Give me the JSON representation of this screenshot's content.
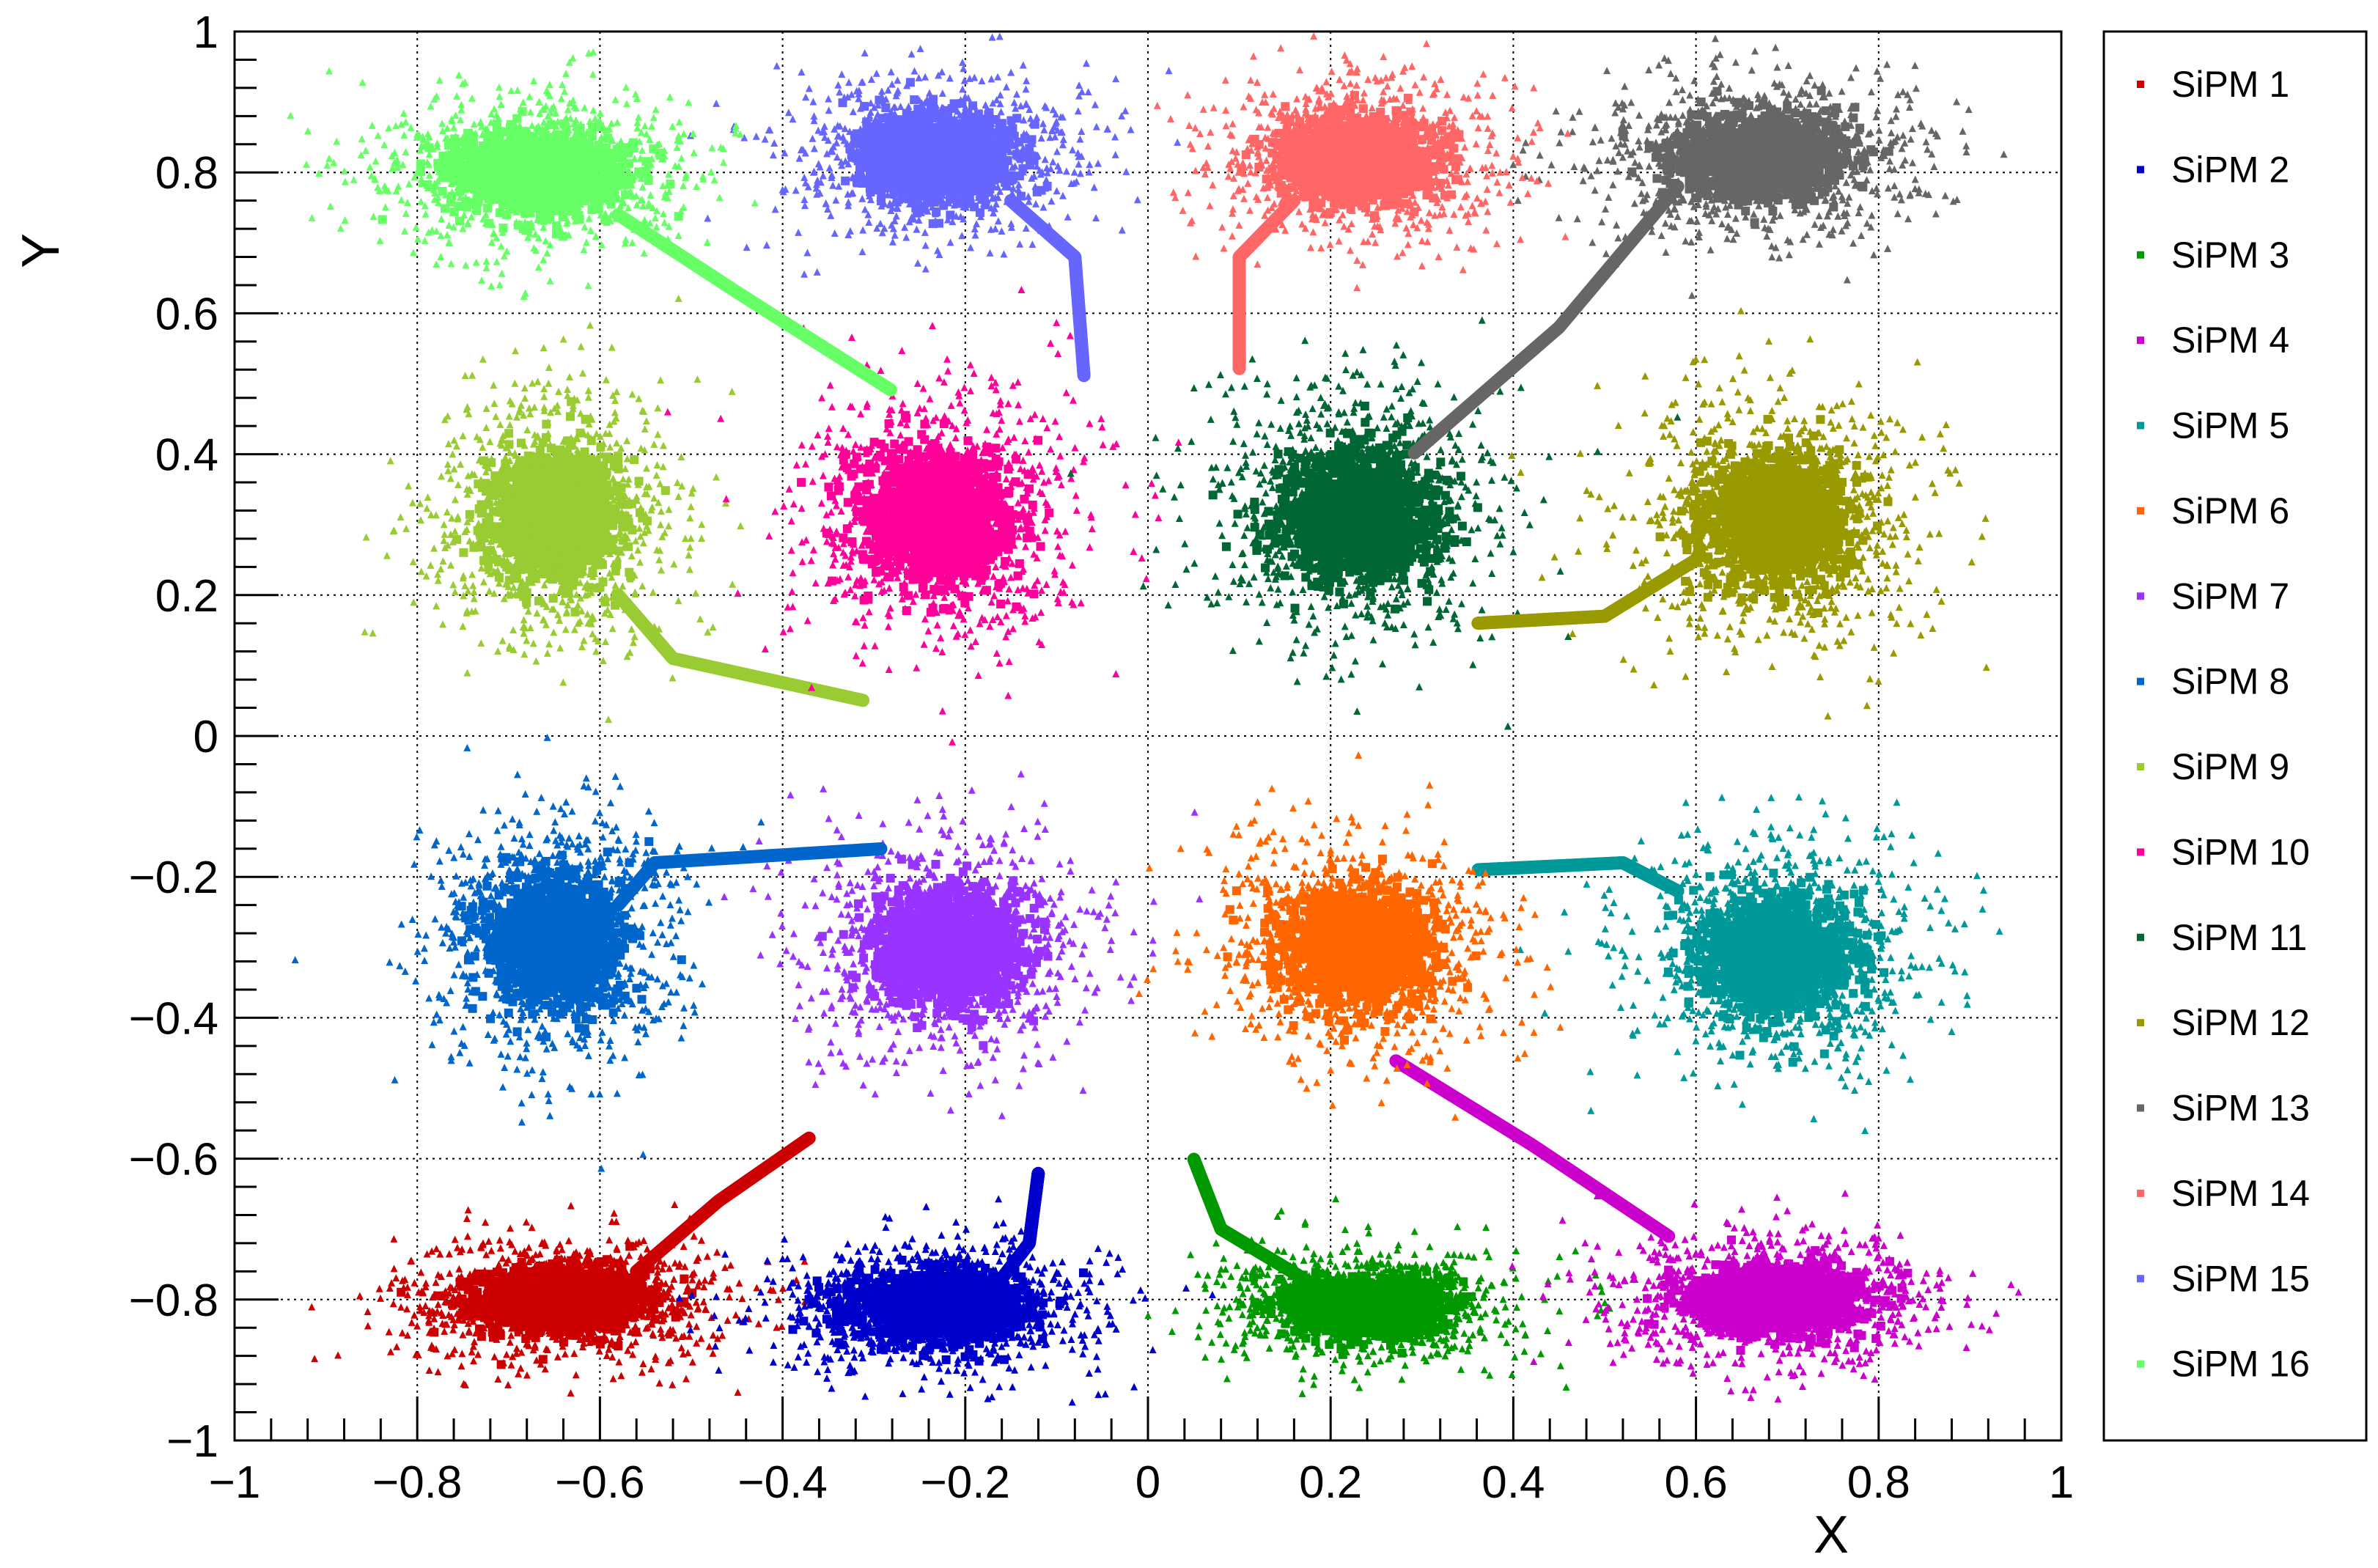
{
  "chart_data": {
    "type": "scatter",
    "xlabel": "X",
    "ylabel": "Y",
    "xlim": [
      -1,
      1
    ],
    "ylim": [
      -1,
      1
    ],
    "grid": true,
    "grid_style": "dotted",
    "legend_position": "right",
    "x_ticks": [
      "−1",
      "−0.8",
      "−0.6",
      "−0.4",
      "−0.2",
      "0",
      "0.2",
      "0.4",
      "0.6",
      "0.8",
      "1"
    ],
    "y_ticks": [
      "−1",
      "−0.8",
      "−0.6",
      "−0.4",
      "−0.2",
      "0",
      "0.2",
      "0.4",
      "0.6",
      "0.8",
      "1"
    ],
    "series": [
      {
        "name": "SiPM 1",
        "color": "#cc0000",
        "center": [
          -0.64,
          -0.8
        ],
        "spread": [
          0.08,
          0.04
        ],
        "tail": [
          [
            -0.56,
            -0.76
          ],
          [
            -0.47,
            -0.66
          ],
          [
            -0.37,
            -0.57
          ]
        ]
      },
      {
        "name": "SiPM 2",
        "color": "#0000cc",
        "center": [
          -0.23,
          -0.81
        ],
        "spread": [
          0.08,
          0.04
        ],
        "tail": [
          [
            -0.16,
            -0.77
          ],
          [
            -0.13,
            -0.72
          ],
          [
            -0.12,
            -0.62
          ]
        ]
      },
      {
        "name": "SiPM 3",
        "color": "#009900",
        "center": [
          0.24,
          -0.81
        ],
        "spread": [
          0.07,
          0.035
        ],
        "tail": [
          [
            0.17,
            -0.77
          ],
          [
            0.08,
            -0.7
          ],
          [
            0.05,
            -0.6
          ]
        ]
      },
      {
        "name": "SiPM 4",
        "color": "#cc00cc",
        "center": [
          0.69,
          -0.8
        ],
        "spread": [
          0.08,
          0.04
        ],
        "tail": [
          [
            0.57,
            -0.71
          ],
          [
            0.42,
            -0.58
          ],
          [
            0.27,
            -0.46
          ]
        ]
      },
      {
        "name": "SiPM 5",
        "color": "#009999",
        "center": [
          0.69,
          -0.31
        ],
        "spread": [
          0.07,
          0.07
        ],
        "tail": [
          [
            0.58,
            -0.22
          ],
          [
            0.52,
            -0.18
          ],
          [
            0.36,
            -0.19
          ]
        ]
      },
      {
        "name": "SiPM 6",
        "color": "#ff6600",
        "center": [
          0.23,
          -0.3
        ],
        "spread": [
          0.07,
          0.07
        ],
        "tail": []
      },
      {
        "name": "SiPM 7",
        "color": "#9933ff",
        "center": [
          -0.22,
          -0.3
        ],
        "spread": [
          0.07,
          0.07
        ],
        "tail": []
      },
      {
        "name": "SiPM 8",
        "color": "#0066cc",
        "center": [
          -0.65,
          -0.29
        ],
        "spread": [
          0.06,
          0.08
        ],
        "tail": [
          [
            -0.58,
            -0.24
          ],
          [
            -0.54,
            -0.18
          ],
          [
            -0.29,
            -0.16
          ]
        ]
      },
      {
        "name": "SiPM 9",
        "color": "#99cc33",
        "center": [
          -0.65,
          0.31
        ],
        "spread": [
          0.06,
          0.08
        ],
        "tail": [
          [
            -0.58,
            0.2
          ],
          [
            -0.52,
            0.11
          ],
          [
            -0.31,
            0.05
          ]
        ]
      },
      {
        "name": "SiPM 10",
        "color": "#ff0099",
        "center": [
          -0.23,
          0.31
        ],
        "spread": [
          0.07,
          0.08
        ],
        "tail": []
      },
      {
        "name": "SiPM 11",
        "color": "#006633",
        "center": [
          0.23,
          0.31
        ],
        "spread": [
          0.07,
          0.08
        ],
        "tail": []
      },
      {
        "name": "SiPM 12",
        "color": "#999900",
        "center": [
          0.69,
          0.31
        ],
        "spread": [
          0.07,
          0.08
        ],
        "tail": [
          [
            0.6,
            0.25
          ],
          [
            0.5,
            0.17
          ],
          [
            0.36,
            0.16
          ]
        ]
      },
      {
        "name": "SiPM 13",
        "color": "#666666",
        "center": [
          0.67,
          0.82
        ],
        "spread": [
          0.08,
          0.05
        ],
        "tail": [
          [
            0.58,
            0.78
          ],
          [
            0.45,
            0.58
          ],
          [
            0.29,
            0.4
          ]
        ]
      },
      {
        "name": "SiPM 14",
        "color": "#ff6666",
        "center": [
          0.23,
          0.82
        ],
        "spread": [
          0.07,
          0.05
        ],
        "tail": [
          [
            0.16,
            0.76
          ],
          [
            0.1,
            0.68
          ],
          [
            0.1,
            0.52
          ]
        ]
      },
      {
        "name": "SiPM 15",
        "color": "#6666ff",
        "center": [
          -0.23,
          0.82
        ],
        "spread": [
          0.07,
          0.05
        ],
        "tail": [
          [
            -0.15,
            0.76
          ],
          [
            -0.08,
            0.68
          ],
          [
            -0.07,
            0.51
          ]
        ]
      },
      {
        "name": "SiPM 16",
        "color": "#66ff66",
        "center": [
          -0.67,
          0.8
        ],
        "spread": [
          0.08,
          0.05
        ],
        "tail": [
          [
            -0.58,
            0.74
          ],
          [
            -0.45,
            0.63
          ],
          [
            -0.28,
            0.49
          ]
        ]
      }
    ]
  }
}
